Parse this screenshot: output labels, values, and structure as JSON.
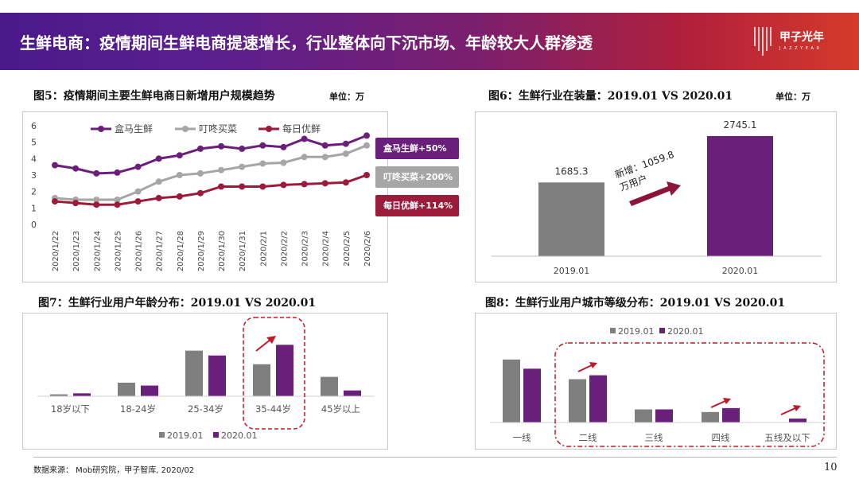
{
  "header": {
    "title": "生鲜电商：疫情期间生鲜电商提速增长，行业整体向下沉市场、年龄较大人群渗透",
    "logo_text": "甲子光年",
    "logo_sub": "J A Z Z Y E A R"
  },
  "colors": {
    "purple": "#6a1f7a",
    "gray": "#7f7f7f",
    "lightgray": "#a6a6a6",
    "crimson": "#9b1b3a",
    "arrow": "#c0182a"
  },
  "fig5": {
    "title": "图5：疫情期间主要生鲜电商日新增用户规模趋势",
    "unit": "单位：万",
    "callouts": [
      "盒马生鲜+50%",
      "叮咚买菜+200%",
      "每日优鲜+114%"
    ]
  },
  "fig6": {
    "title": "图6：生鲜行业在装量：2019.01 VS 2020.01",
    "unit": "单位：万",
    "annotation_line1": "新增：1059.8",
    "annotation_line2": "万用户"
  },
  "fig7": {
    "title": "图7：生鲜行业用户年龄分布：2019.01 VS 2020.01"
  },
  "fig8": {
    "title": "图8：生鲜行业用户城市等级分布：2019.01 VS 2020.01"
  },
  "footer": {
    "source": "数据来源： Mob研究院，甲子智库, 2020/02",
    "page": "10"
  },
  "chart_data": [
    {
      "type": "line",
      "categories": [
        "2020/1/22",
        "2020/1/23",
        "2020/1/24",
        "2020/1/25",
        "2020/1/26",
        "2020/1/27",
        "2020/1/28",
        "2020/1/29",
        "2020/1/30",
        "2020/1/31",
        "2020/2/1",
        "2020/2/2",
        "2020/2/3",
        "2020/2/4",
        "2020/2/5",
        "2020/2/6"
      ],
      "ylim": [
        0,
        6
      ],
      "yticks": [
        0,
        1,
        2,
        3,
        4,
        5,
        6
      ],
      "legend": "top",
      "series": [
        {
          "name": "盒马生鲜",
          "color": "#6a1f7a",
          "values": [
            3.6,
            3.4,
            3.1,
            3.15,
            3.5,
            4.0,
            4.2,
            4.6,
            4.75,
            4.6,
            4.8,
            4.7,
            5.2,
            4.8,
            4.9,
            5.4
          ]
        },
        {
          "name": "叮咚买菜",
          "color": "#a6a6a6",
          "values": [
            1.6,
            1.5,
            1.5,
            1.5,
            2.0,
            2.6,
            3.0,
            3.1,
            3.3,
            3.5,
            3.7,
            3.75,
            4.1,
            4.1,
            4.3,
            4.8
          ]
        },
        {
          "name": "每日优鲜",
          "color": "#9b1b3a",
          "values": [
            1.4,
            1.3,
            1.2,
            1.2,
            1.4,
            1.6,
            1.7,
            1.9,
            2.3,
            2.3,
            2.3,
            2.4,
            2.45,
            2.5,
            2.55,
            3.0
          ]
        }
      ]
    },
    {
      "type": "bar",
      "categories": [
        "2019.01",
        "2020.01"
      ],
      "values": [
        1685.3,
        2745.1
      ],
      "data_labels": [
        "1685.3",
        "2745.1"
      ],
      "colors": [
        "#7f7f7f",
        "#6a1f7a"
      ],
      "ylim": [
        0,
        3000
      ]
    },
    {
      "type": "bar",
      "categories": [
        "18岁以下",
        "18-24岁",
        "25-34岁",
        "35-44岁",
        "45岁以上"
      ],
      "legend": "bottom",
      "series": [
        {
          "name": "2019.01",
          "color": "#7f7f7f",
          "values": [
            2,
            14,
            47,
            33,
            20
          ]
        },
        {
          "name": "2020.01",
          "color": "#6a1f7a",
          "values": [
            3,
            11,
            42,
            53,
            6
          ]
        }
      ]
    },
    {
      "type": "bar",
      "categories": [
        "一线",
        "二线",
        "三线",
        "四线",
        "五线及以下"
      ],
      "legend": "top-left",
      "series": [
        {
          "name": "2019.01",
          "color": "#7f7f7f",
          "values": [
            48,
            33,
            10,
            8,
            0
          ]
        },
        {
          "name": "2020.01",
          "color": "#6a1f7a",
          "values": [
            41,
            36,
            10,
            11,
            3
          ]
        }
      ]
    }
  ]
}
